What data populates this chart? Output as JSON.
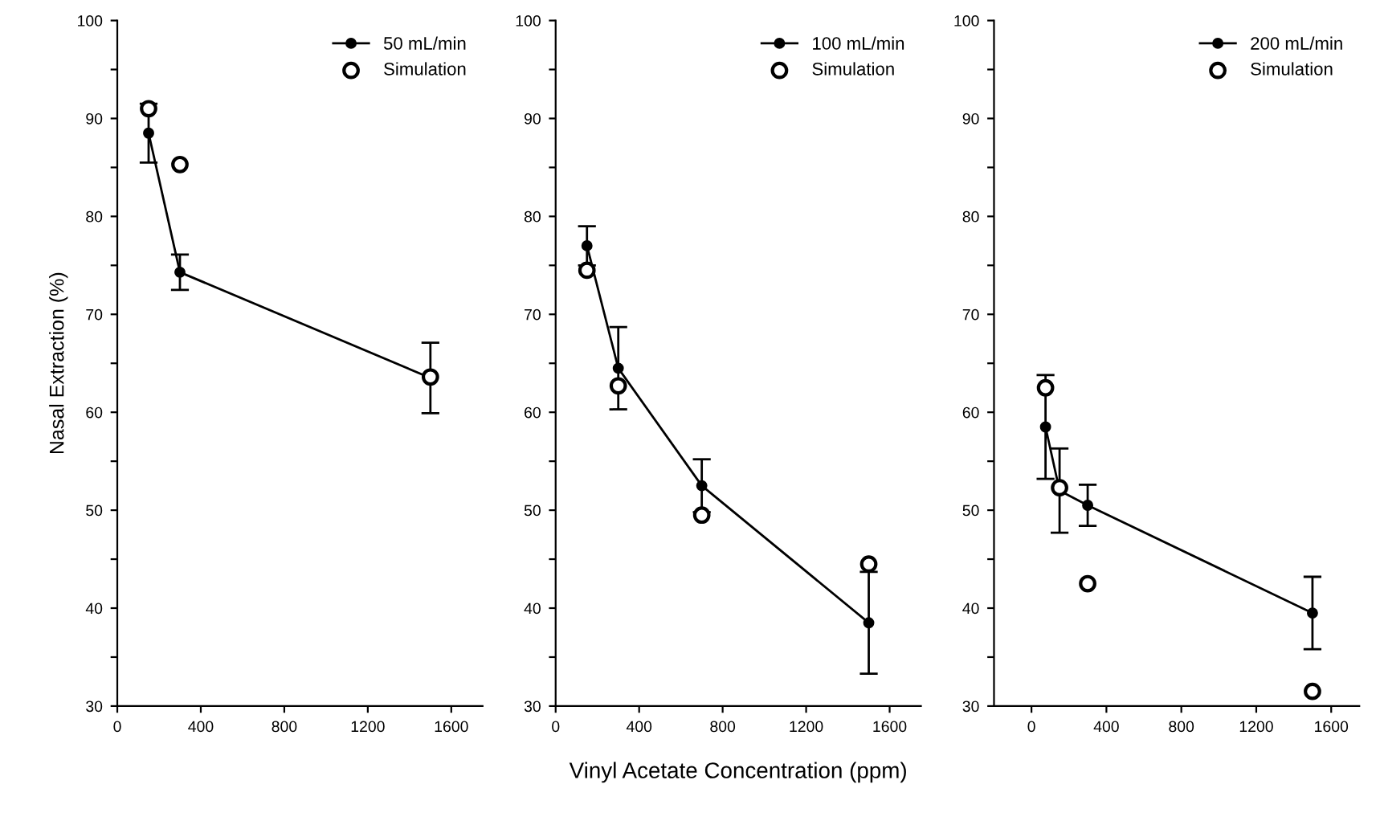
{
  "chart_data": [
    {
      "type": "line",
      "ylabel": "Nasal Extraction (%)",
      "xlim": [
        0,
        1750
      ],
      "ylim": [
        30,
        100
      ],
      "xticks": [
        0,
        400,
        800,
        1200,
        1600
      ],
      "yticks": [
        30,
        {
          "value": 35,
          "label": null
        },
        40,
        {
          "value": 45,
          "label": null
        },
        50,
        {
          "value": 55,
          "label": null
        },
        60,
        {
          "value": 65,
          "label": null
        },
        70,
        {
          "value": 75,
          "label": null
        },
        80,
        {
          "value": 85,
          "label": null
        },
        90,
        {
          "value": 95,
          "label": null
        },
        100
      ],
      "grid": false,
      "legend": "top right",
      "series": [
        {
          "name": "50 mL/min",
          "color": "#000000",
          "marker": "circle",
          "x": [
            150,
            300,
            1500
          ],
          "values": [
            88.5,
            74.3,
            63.5
          ],
          "errors": [
            3,
            1.8,
            3.6
          ]
        },
        {
          "name": "Simulation",
          "type": "scatter",
          "color": "#000000",
          "marker": "circle",
          "x": [
            150,
            300,
            1500
          ],
          "values": [
            91,
            85.3,
            63.6
          ]
        }
      ]
    },
    {
      "type": "line",
      "xlabel": "Vinyl Acetate Concentration (ppm)",
      "xlim": [
        0,
        1750
      ],
      "ylim": [
        30,
        100
      ],
      "xticks": [
        0,
        400,
        800,
        1200,
        1600
      ],
      "yticks": [
        30,
        {
          "value": 35,
          "label": null
        },
        40,
        {
          "value": 45,
          "label": null
        },
        50,
        {
          "value": 55,
          "label": null
        },
        60,
        {
          "value": 65,
          "label": null
        },
        70,
        {
          "value": 75,
          "label": null
        },
        80,
        {
          "value": 85,
          "label": null
        },
        90,
        {
          "value": 95,
          "label": null
        },
        100
      ],
      "grid": false,
      "legend": "top right",
      "series": [
        {
          "name": "100 mL/min",
          "color": "#000000",
          "marker": "circle",
          "x": [
            150,
            300,
            700,
            1500
          ],
          "values": [
            77,
            64.5,
            52.5,
            38.5
          ],
          "errors": [
            2,
            4.2,
            2.7,
            5.2
          ]
        },
        {
          "name": "Simulation",
          "type": "scatter",
          "color": "#000000",
          "marker": "circle",
          "x": [
            150,
            300,
            700,
            1500
          ],
          "values": [
            74.5,
            62.7,
            49.5,
            44.5
          ]
        }
      ]
    },
    {
      "type": "line",
      "xlim": [
        -200,
        1750
      ],
      "ylim": [
        30,
        100
      ],
      "xticks": [
        0,
        400,
        800,
        1200,
        1600
      ],
      "yticks": [
        30,
        {
          "value": 35,
          "label": null
        },
        40,
        {
          "value": 45,
          "label": null
        },
        50,
        {
          "value": 55,
          "label": null
        },
        60,
        {
          "value": 65,
          "label": null
        },
        70,
        {
          "value": 75,
          "label": null
        },
        80,
        {
          "value": 85,
          "label": null
        },
        90,
        {
          "value": 95,
          "label": null
        },
        100
      ],
      "grid": false,
      "legend": "top right",
      "series": [
        {
          "name": "200 mL/min",
          "color": "#000000",
          "marker": "circle",
          "x": [
            75,
            150,
            300,
            1500
          ],
          "values": [
            58.5,
            52,
            50.5,
            39.5
          ],
          "errors": [
            5.3,
            4.3,
            2.1,
            3.7
          ]
        },
        {
          "name": "Simulation",
          "type": "scatter",
          "color": "#000000",
          "marker": "circle",
          "x": [
            75,
            150,
            300,
            1500
          ],
          "values": [
            62.5,
            52.3,
            42.5,
            31.5
          ]
        }
      ]
    }
  ]
}
